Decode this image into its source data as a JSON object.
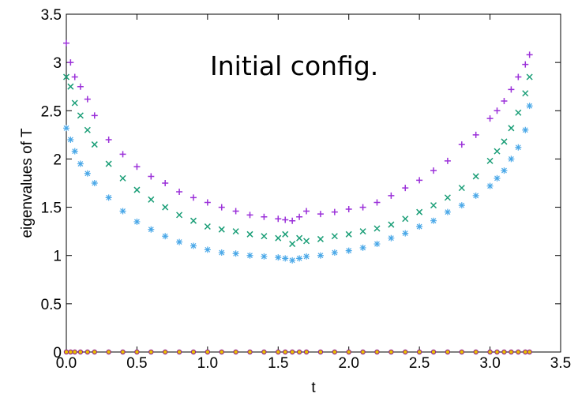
{
  "chart_data": {
    "type": "scatter",
    "title": "",
    "annotation": "Initial config.",
    "xlabel": "t",
    "ylabel": "eigenvalues of T",
    "xlim": [
      0,
      3.5
    ],
    "ylim": [
      0,
      3.5
    ],
    "xticks": [
      "0.0",
      "0.5",
      "1.0",
      "1.5",
      "2.0",
      "2.5",
      "3.0",
      "3.5"
    ],
    "yticks": [
      "0",
      "0.5",
      "1",
      "1.5",
      "2",
      "2.5",
      "3",
      "3.5"
    ],
    "grid": false,
    "legend": "none",
    "x": [
      0.0,
      0.03,
      0.06,
      0.1,
      0.15,
      0.2,
      0.3,
      0.4,
      0.5,
      0.6,
      0.7,
      0.8,
      0.9,
      1.0,
      1.1,
      1.2,
      1.3,
      1.4,
      1.5,
      1.55,
      1.6,
      1.65,
      1.7,
      1.8,
      1.9,
      2.0,
      2.1,
      2.2,
      2.3,
      2.4,
      2.5,
      2.6,
      2.7,
      2.8,
      2.9,
      3.0,
      3.05,
      3.1,
      3.15,
      3.2,
      3.25,
      3.28
    ],
    "series": [
      {
        "color": "#9b30d9",
        "marker": "plus",
        "values": [
          3.2,
          3.0,
          2.85,
          2.75,
          2.62,
          2.45,
          2.2,
          2.05,
          1.92,
          1.82,
          1.75,
          1.66,
          1.6,
          1.55,
          1.5,
          1.46,
          1.42,
          1.4,
          1.38,
          1.37,
          1.36,
          1.4,
          1.46,
          1.43,
          1.45,
          1.48,
          1.5,
          1.55,
          1.62,
          1.7,
          1.78,
          1.88,
          1.98,
          2.15,
          2.25,
          2.42,
          2.5,
          2.6,
          2.72,
          2.85,
          2.98,
          3.08
        ]
      },
      {
        "color": "#1a9e77",
        "marker": "x",
        "values": [
          2.85,
          2.75,
          2.58,
          2.45,
          2.3,
          2.15,
          1.95,
          1.8,
          1.68,
          1.58,
          1.5,
          1.42,
          1.36,
          1.3,
          1.27,
          1.25,
          1.22,
          1.2,
          1.18,
          1.22,
          1.12,
          1.18,
          1.15,
          1.17,
          1.2,
          1.22,
          1.25,
          1.28,
          1.32,
          1.38,
          1.45,
          1.52,
          1.6,
          1.7,
          1.82,
          1.98,
          2.08,
          2.18,
          2.32,
          2.48,
          2.68,
          2.85
        ]
      },
      {
        "color": "#4aa8e8",
        "marker": "asterisk",
        "values": [
          2.32,
          2.2,
          2.08,
          1.95,
          1.85,
          1.75,
          1.6,
          1.46,
          1.35,
          1.27,
          1.2,
          1.14,
          1.1,
          1.06,
          1.03,
          1.02,
          1.0,
          0.99,
          0.98,
          0.97,
          0.95,
          0.97,
          0.99,
          1.0,
          1.03,
          1.05,
          1.08,
          1.12,
          1.18,
          1.23,
          1.3,
          1.36,
          1.45,
          1.52,
          1.62,
          1.72,
          1.8,
          1.88,
          2.0,
          2.12,
          2.3,
          2.55
        ]
      },
      {
        "color": "#8b1a8b",
        "marker": "dot",
        "values": [
          0,
          0,
          0,
          0,
          0,
          0,
          0,
          0,
          0,
          0,
          0,
          0,
          0,
          0,
          0,
          0,
          0,
          0,
          0,
          0,
          0,
          0,
          0,
          0,
          0,
          0,
          0,
          0,
          0,
          0,
          0,
          0,
          0,
          0,
          0,
          0,
          0,
          0,
          0,
          0,
          0,
          0
        ]
      },
      {
        "color": "#e8c000",
        "marker": "dot",
        "values": [
          0,
          0,
          0,
          0,
          0,
          0,
          0,
          0,
          0,
          0,
          0,
          0,
          0,
          0,
          0,
          0,
          0,
          0,
          0,
          0,
          0,
          0,
          0,
          0,
          0,
          0,
          0,
          0,
          0,
          0,
          0,
          0,
          0,
          0,
          0,
          0,
          0,
          0,
          0,
          0,
          0,
          0
        ]
      }
    ]
  }
}
